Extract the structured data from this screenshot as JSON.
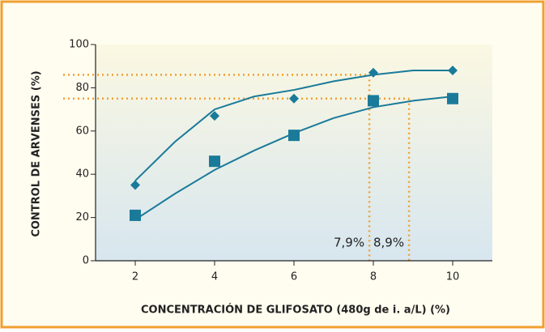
{
  "chart_data": {
    "type": "scatter",
    "xlabel": "CONCENTRACIÓN DE GLIFOSATO (480g de i. a/L)  (%)",
    "ylabel": "CONTROL DE ARVENSES (%)",
    "x": [
      2,
      4,
      6,
      8,
      10
    ],
    "series": [
      {
        "marker": "diamond",
        "color": "#1a7a9a",
        "values": [
          35,
          67,
          75,
          87,
          88
        ]
      },
      {
        "marker": "square",
        "color": "#1a7a9a",
        "values": [
          21,
          46,
          58,
          74,
          75
        ]
      }
    ],
    "fits": [
      {
        "color": "#1a7a9a",
        "x": [
          2,
          3,
          4,
          5,
          6,
          7,
          8,
          9,
          10
        ],
        "values": [
          37,
          55,
          70,
          76,
          79,
          83,
          86,
          88,
          88
        ]
      },
      {
        "color": "#1a7a9a",
        "x": [
          2,
          3,
          4,
          5,
          6,
          7,
          8,
          9,
          10
        ],
        "values": [
          19,
          31,
          42,
          51,
          59,
          66,
          71,
          74,
          76
        ]
      }
    ],
    "reference_lines": [
      {
        "x": 7.9,
        "y": 86,
        "label": "7,9%",
        "color": "#f0a030"
      },
      {
        "x": 8.9,
        "y": 75,
        "label": "8,9%",
        "color": "#f0a030"
      }
    ],
    "xlim": [
      1,
      11
    ],
    "ylim": [
      0,
      100
    ],
    "xticks": [
      2,
      4,
      6,
      8,
      10
    ],
    "yticks": [
      0,
      20,
      40,
      60,
      80,
      100
    ]
  }
}
